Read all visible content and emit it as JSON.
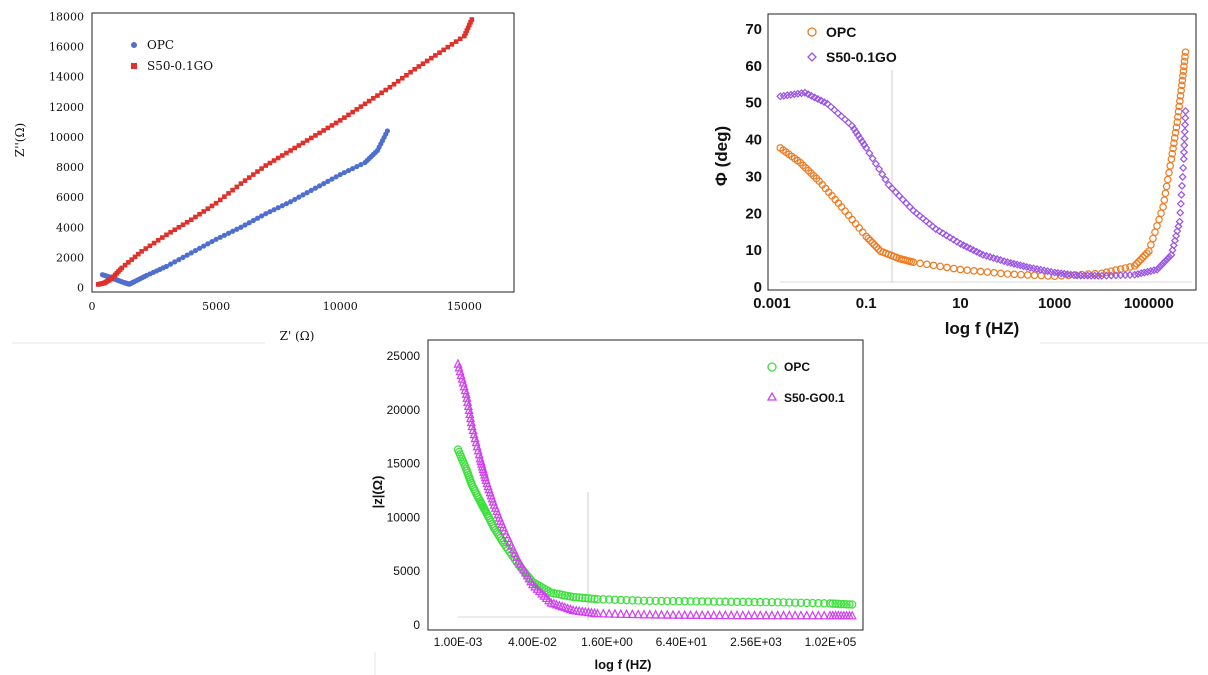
{
  "chart_data": [
    {
      "type": "scatter",
      "xlabel": "Z' (Ω)",
      "ylabel": "Z''(Ω)",
      "xlim": [
        0,
        17000
      ],
      "ylim": [
        -500,
        18500
      ],
      "xticks": [
        "0",
        "5000",
        "10000",
        "15000"
      ],
      "yticks": [
        "0",
        "2000",
        "4000",
        "6000",
        "8000",
        "10000",
        "12000",
        "14000",
        "16000",
        "18000"
      ],
      "legend_position": "top-left",
      "series": [
        {
          "name": "OPC",
          "color": "#4f6fd0",
          "marker": "circle",
          "points": [
            [
              420,
              850
            ],
            [
              700,
              700
            ],
            [
              1000,
              500
            ],
            [
              1300,
              320
            ],
            [
              1500,
              220
            ],
            [
              1700,
              380
            ],
            [
              2200,
              800
            ],
            [
              3000,
              1400
            ],
            [
              4000,
              2300
            ],
            [
              5000,
              3200
            ],
            [
              6000,
              4000
            ],
            [
              7000,
              4900
            ],
            [
              8000,
              5700
            ],
            [
              9000,
              6600
            ],
            [
              10000,
              7500
            ],
            [
              11000,
              8300
            ],
            [
              11500,
              9100
            ],
            [
              11900,
              10400
            ]
          ]
        },
        {
          "name": "S50-0.1GO",
          "color": "#e0302a",
          "marker": "square",
          "points": [
            [
              250,
              200
            ],
            [
              500,
              300
            ],
            [
              800,
              600
            ],
            [
              1200,
              1300
            ],
            [
              2000,
              2400
            ],
            [
              3000,
              3500
            ],
            [
              4000,
              4500
            ],
            [
              5000,
              5600
            ],
            [
              6000,
              6900
            ],
            [
              7000,
              8100
            ],
            [
              8000,
              9100
            ],
            [
              9000,
              10100
            ],
            [
              10000,
              11100
            ],
            [
              11000,
              12200
            ],
            [
              12000,
              13300
            ],
            [
              13000,
              14500
            ],
            [
              14000,
              15600
            ],
            [
              15000,
              16700
            ],
            [
              15300,
              17800
            ]
          ]
        }
      ]
    },
    {
      "type": "scatter",
      "xlabel": "log f (HZ)",
      "ylabel": "Φ (deg)",
      "x_scale": "log",
      "xlim": [
        0.001,
        1000000
      ],
      "ylim": [
        0,
        70
      ],
      "xticks": [
        "0.001",
        "0.1",
        "10",
        "1000",
        "100000"
      ],
      "yticks": [
        "0",
        "10",
        "20",
        "30",
        "40",
        "50",
        "60",
        "70"
      ],
      "legend_position": "top-left",
      "series": [
        {
          "name": "OPC",
          "color": "#f07a20",
          "marker": "circle",
          "points": [
            [
              0.0015,
              38
            ],
            [
              0.004,
              34
            ],
            [
              0.01,
              29
            ],
            [
              0.03,
              22
            ],
            [
              0.1,
              14
            ],
            [
              0.2,
              10
            ],
            [
              0.5,
              8
            ],
            [
              1,
              7
            ],
            [
              10,
              5
            ],
            [
              100,
              3.8
            ],
            [
              1000,
              3.2
            ],
            [
              10000,
              4
            ],
            [
              50000,
              6
            ],
            [
              100000,
              10
            ],
            [
              200000,
              22
            ],
            [
              300000,
              35
            ],
            [
              400000,
              45
            ],
            [
              500000,
              55
            ],
            [
              600000,
              64
            ]
          ]
        },
        {
          "name": "S50-0.1GO",
          "color": "#9a52e8",
          "marker": "diamond",
          "points": [
            [
              0.0015,
              52
            ],
            [
              0.005,
              53
            ],
            [
              0.015,
              50
            ],
            [
              0.05,
              44
            ],
            [
              0.1,
              38
            ],
            [
              0.3,
              28
            ],
            [
              1,
              21
            ],
            [
              3,
              16
            ],
            [
              10,
              12
            ],
            [
              30,
              9
            ],
            [
              100,
              7
            ],
            [
              300,
              5.5
            ],
            [
              1000,
              4.2
            ],
            [
              3000,
              3.4
            ],
            [
              10000,
              3.3
            ],
            [
              50000,
              3.6
            ],
            [
              150000,
              5
            ],
            [
              300000,
              9
            ],
            [
              450000,
              18
            ],
            [
              550000,
              35
            ],
            [
              600000,
              48
            ]
          ]
        }
      ]
    },
    {
      "type": "scatter",
      "xlabel": "log f (HZ)",
      "ylabel": "|z|(Ω)",
      "x_scale": "log",
      "xlim": [
        0.001,
        400000
      ],
      "ylim": [
        0,
        25000
      ],
      "xticks": [
        "1.00E-03",
        "4.00E-02",
        "1.60E+00",
        "6.40E+01",
        "2.56E+03",
        "1.02E+05"
      ],
      "yticks": [
        "0",
        "5000",
        "10000",
        "15000",
        "20000",
        "25000"
      ],
      "legend_position": "top-right",
      "series": [
        {
          "name": "OPC",
          "color": "#3ee03e",
          "marker": "circle",
          "points": [
            [
              0.001,
              16300
            ],
            [
              0.0015,
              14500
            ],
            [
              0.002,
              13000
            ],
            [
              0.003,
              11500
            ],
            [
              0.004,
              10500
            ],
            [
              0.006,
              9000
            ],
            [
              0.01,
              7500
            ],
            [
              0.02,
              5600
            ],
            [
              0.04,
              4000
            ],
            [
              0.1,
              3000
            ],
            [
              0.3,
              2600
            ],
            [
              1,
              2400
            ],
            [
              10,
              2250
            ],
            [
              100,
              2200
            ],
            [
              1000,
              2150
            ],
            [
              10000,
              2100
            ],
            [
              100000,
              2000
            ],
            [
              300000,
              1900
            ]
          ]
        },
        {
          "name": "S50-GO0.1",
          "color": "#d040f0",
          "marker": "triangle",
          "points": [
            [
              0.001,
              24300
            ],
            [
              0.0015,
              21500
            ],
            [
              0.002,
              18500
            ],
            [
              0.003,
              15500
            ],
            [
              0.004,
              13500
            ],
            [
              0.006,
              11200
            ],
            [
              0.01,
              8800
            ],
            [
              0.02,
              6000
            ],
            [
              0.04,
              3800
            ],
            [
              0.1,
              2100
            ],
            [
              0.3,
              1400
            ],
            [
              1,
              1100
            ],
            [
              10,
              1000
            ],
            [
              100,
              950
            ],
            [
              1000,
              930
            ],
            [
              10000,
              920
            ],
            [
              100000,
              910
            ],
            [
              300000,
              900
            ]
          ]
        }
      ]
    }
  ]
}
